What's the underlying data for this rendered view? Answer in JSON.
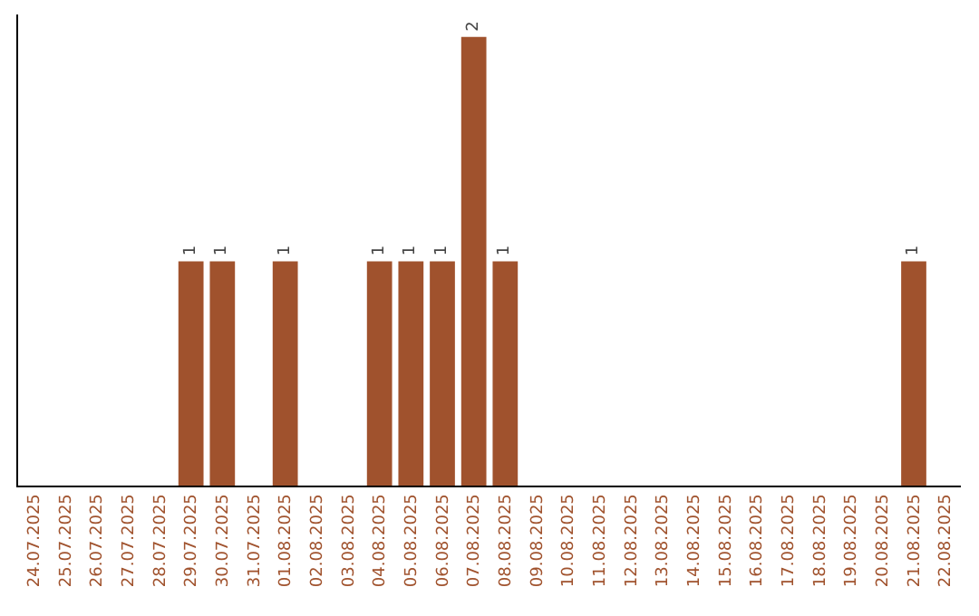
{
  "chart_data": {
    "type": "bar",
    "categories": [
      "24.07.2025",
      "25.07.2025",
      "26.07.2025",
      "27.07.2025",
      "28.07.2025",
      "29.07.2025",
      "30.07.2025",
      "31.07.2025",
      "01.08.2025",
      "02.08.2025",
      "03.08.2025",
      "04.08.2025",
      "05.08.2025",
      "06.08.2025",
      "07.08.2025",
      "08.08.2025",
      "09.08.2025",
      "10.08.2025",
      "11.08.2025",
      "12.08.2025",
      "13.08.2025",
      "14.08.2025",
      "15.08.2025",
      "16.08.2025",
      "17.08.2025",
      "18.08.2025",
      "19.08.2025",
      "20.08.2025",
      "21.08.2025",
      "22.08.2025"
    ],
    "values": [
      0,
      0,
      0,
      0,
      0,
      1,
      1,
      0,
      1,
      0,
      0,
      1,
      1,
      1,
      2,
      1,
      0,
      0,
      0,
      0,
      0,
      0,
      0,
      0,
      0,
      0,
      0,
      0,
      1,
      0
    ],
    "value_labels": [
      null,
      null,
      null,
      null,
      null,
      "1",
      "1",
      null,
      "1",
      null,
      null,
      "1",
      "1",
      "1",
      "2",
      "1",
      null,
      null,
      null,
      null,
      null,
      null,
      null,
      null,
      null,
      null,
      null,
      null,
      "1",
      null
    ],
    "color": "#a0522d",
    "ylim": [
      0,
      2.1
    ],
    "tick_labels": "x"
  }
}
